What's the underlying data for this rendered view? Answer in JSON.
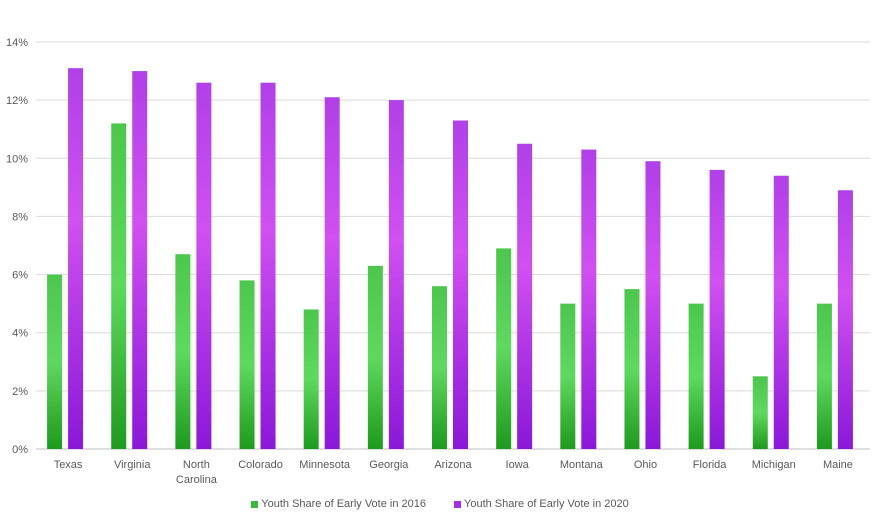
{
  "chart_data": {
    "type": "bar",
    "categories": [
      "Texas",
      "Virginia",
      "North Carolina",
      "Colorado",
      "Minnesota",
      "Georgia",
      "Arizona",
      "Iowa",
      "Montana",
      "Ohio",
      "Florida",
      "Michigan",
      "Maine"
    ],
    "category_lines": [
      [
        "Texas"
      ],
      [
        "Virginia"
      ],
      [
        "North",
        "Carolina"
      ],
      [
        "Colorado"
      ],
      [
        "Minnesota"
      ],
      [
        "Georgia"
      ],
      [
        "Arizona"
      ],
      [
        "Iowa"
      ],
      [
        "Montana"
      ],
      [
        "Ohio"
      ],
      [
        "Florida"
      ],
      [
        "Michigan"
      ],
      [
        "Maine"
      ]
    ],
    "series": [
      {
        "name": "Youth Share of Early Vote in 2016",
        "color": "#3cb83c",
        "values": [
          6.0,
          11.2,
          6.7,
          5.8,
          4.8,
          6.3,
          5.6,
          6.9,
          5.0,
          5.5,
          5.0,
          2.5,
          5.0
        ]
      },
      {
        "name": "Youth Share of Early Vote in 2020",
        "color": "#a030e0",
        "values": [
          13.1,
          13.0,
          12.6,
          12.6,
          12.1,
          12.0,
          11.3,
          10.5,
          10.3,
          9.9,
          9.6,
          9.4,
          8.9
        ]
      }
    ],
    "ylim": [
      0,
      14
    ],
    "yticks": [
      "0%",
      "2%",
      "4%",
      "6%",
      "8%",
      "10%",
      "12%",
      "14%"
    ],
    "grid": true,
    "legend": "bottom"
  }
}
